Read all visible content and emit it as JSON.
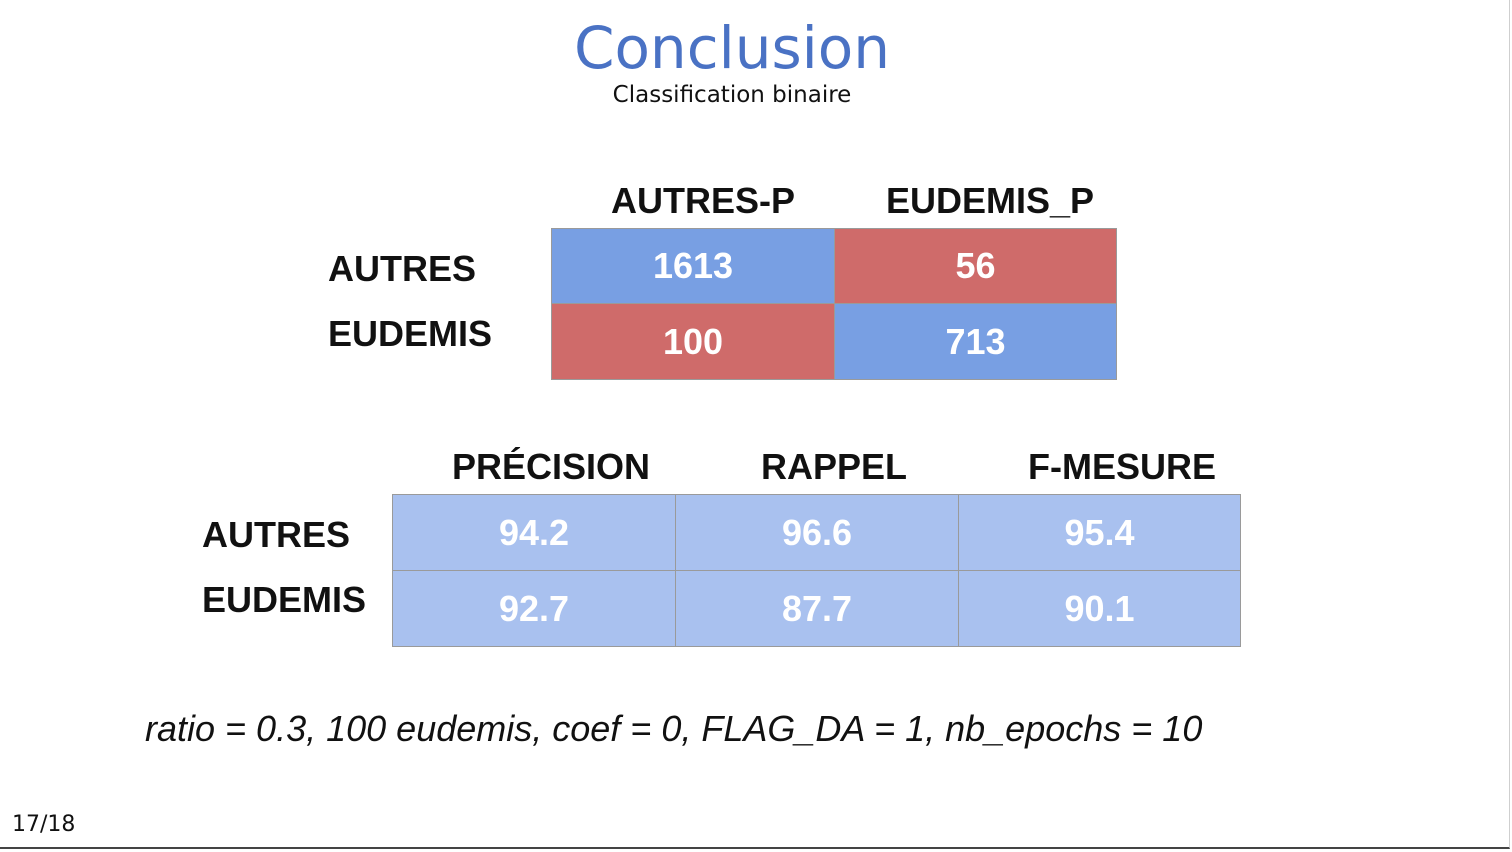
{
  "slide": {
    "title": "Conclusion",
    "subtitle": "Classification binaire",
    "page": "17/18",
    "footer": "ratio = 0.3, 100 eudemis, coef = 0, FLAG_DA = 1, nb_epochs = 10"
  },
  "confusion": {
    "col_headers": [
      "AUTRES-P",
      "EUDEMIS_P"
    ],
    "row_labels": [
      "AUTRES",
      "EUDEMIS"
    ],
    "cells": [
      [
        "1613",
        "56"
      ],
      [
        "100",
        "713"
      ]
    ]
  },
  "metrics": {
    "col_headers": [
      "PRÉCISION",
      "RAPPEL",
      "F-MESURE"
    ],
    "row_labels": [
      "AUTRES",
      "EUDEMIS"
    ],
    "cells": [
      [
        "94.2",
        "96.6",
        "95.4"
      ],
      [
        "92.7",
        "87.7",
        "90.1"
      ]
    ]
  },
  "colors": {
    "title": "#4a72c4",
    "correct": "#789fe3",
    "error": "#cf6b6a",
    "metric": "#a9c1ef"
  }
}
